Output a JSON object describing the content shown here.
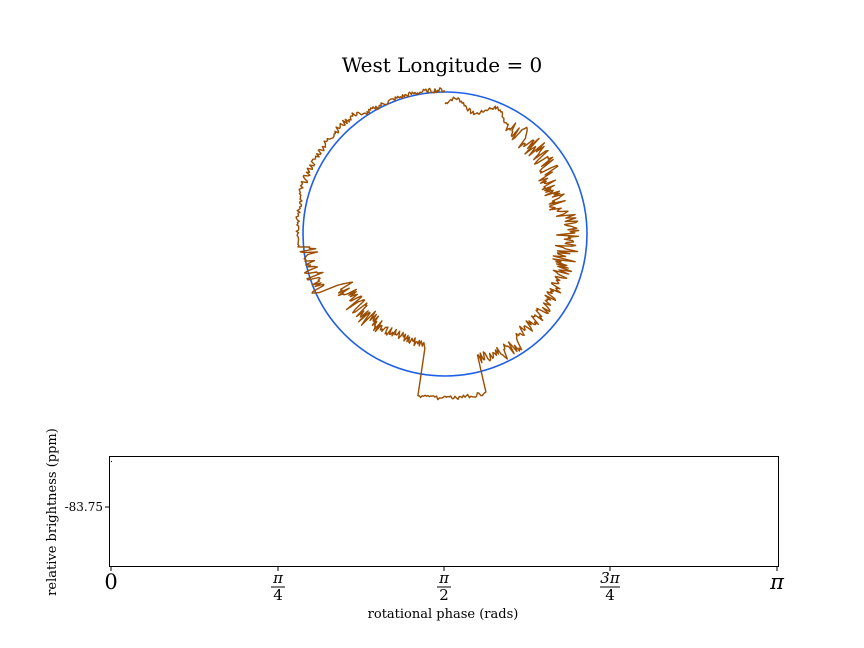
{
  "chart_data": [
    {
      "type": "polar-outline",
      "title": "West Longitude = 0",
      "reference_circle_color": "#1f5fe6",
      "profile_color": "#9b4d00"
    },
    {
      "type": "line",
      "title": "",
      "xlabel": "rotational phase (rads)",
      "ylabel": "relative brightness (ppm)",
      "xlim": [
        0,
        3.14159
      ],
      "x_ticks": [
        {
          "value": 0,
          "label": "0"
        },
        {
          "value": 0.7854,
          "num": "π",
          "den": "4"
        },
        {
          "value": 1.5708,
          "num": "π",
          "den": "2"
        },
        {
          "value": 2.3562,
          "num": "3π",
          "den": "4"
        },
        {
          "value": 3.14159,
          "label": "π"
        }
      ],
      "y_ticks": [
        {
          "value": -83.75,
          "label": "-83.75"
        }
      ],
      "series": [
        {
          "x": [
            0
          ],
          "y": [
            -83.75
          ]
        }
      ]
    }
  ]
}
